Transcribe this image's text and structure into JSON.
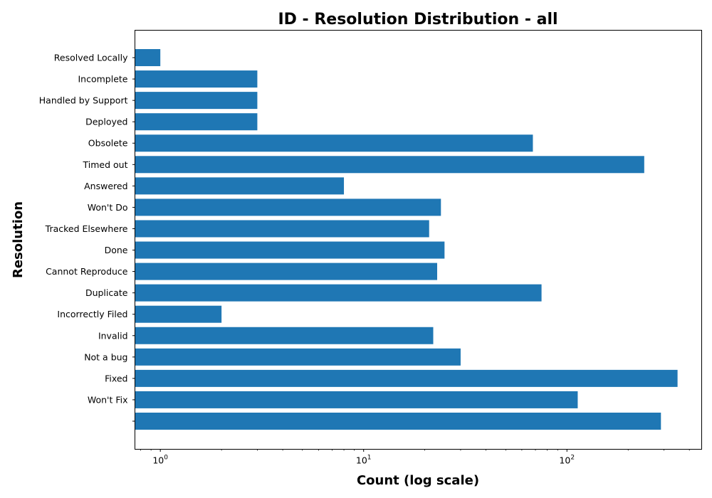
{
  "chart_data": {
    "type": "bar",
    "orientation": "horizontal",
    "title": "ID - Resolution Distribution - all",
    "xlabel": "Count (log scale)",
    "ylabel": "Resolution",
    "x_scale": "log",
    "xlim": [
      0.75,
      460
    ],
    "x_ticks": [
      {
        "base": "10",
        "exp": "0",
        "value": 1
      },
      {
        "base": "10",
        "exp": "1",
        "value": 10
      },
      {
        "base": "10",
        "exp": "2",
        "value": 100
      }
    ],
    "categories": [
      "",
      "Won't Fix",
      "Fixed",
      "Not a bug",
      "Invalid",
      "Incorrectly Filed",
      "Duplicate",
      "Cannot Reproduce",
      "Done",
      "Tracked Elsewhere",
      "Won't Do",
      "Answered",
      "Timed out",
      "Obsolete",
      "Deployed",
      "Handled by Support",
      "Incomplete",
      "Resolved Locally"
    ],
    "values": [
      290,
      113,
      350,
      30,
      22,
      2,
      75,
      23,
      25,
      21,
      24,
      8,
      240,
      68,
      3,
      3,
      3,
      1
    ],
    "bar_color": "#1f77b4",
    "grid": false,
    "legend": false
  }
}
